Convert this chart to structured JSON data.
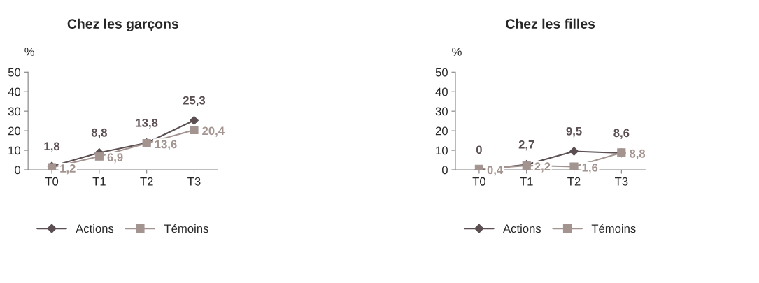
{
  "chart_data": [
    {
      "type": "line",
      "title": "Chez les garçons",
      "ylabel": "%",
      "categories": [
        "T0",
        "T1",
        "T2",
        "T3"
      ],
      "ylim": [
        0,
        50
      ],
      "yticks": [
        0,
        10,
        20,
        30,
        40,
        50
      ],
      "grid": false,
      "legend": "bottom",
      "series": [
        {
          "name": "Actions",
          "color": "#5b4f52",
          "marker": "diamond",
          "values": [
            1.8,
            8.8,
            13.8,
            25.3
          ],
          "value_labels": [
            "1,8",
            "8,8",
            "13,8",
            "25,3"
          ]
        },
        {
          "name": "Témoins",
          "color": "#a39490",
          "marker": "square",
          "values": [
            1.2,
            6.9,
            13.6,
            20.4
          ],
          "value_labels": [
            "1,2",
            "6,9",
            "13,6",
            "20,4"
          ]
        }
      ]
    },
    {
      "type": "line",
      "title": "Chez les filles",
      "ylabel": "%",
      "categories": [
        "T0",
        "T1",
        "T2",
        "T3"
      ],
      "ylim": [
        0,
        50
      ],
      "yticks": [
        0,
        10,
        20,
        30,
        40,
        50
      ],
      "grid": false,
      "legend": "bottom",
      "series": [
        {
          "name": "Actions",
          "color": "#5b4f52",
          "marker": "diamond",
          "values": [
            0,
            2.7,
            9.5,
            8.6
          ],
          "value_labels": [
            "0",
            "2,7",
            "9,5",
            "8,6"
          ]
        },
        {
          "name": "Témoins",
          "color": "#a39490",
          "marker": "square",
          "values": [
            0.4,
            2.2,
            1.6,
            8.8
          ],
          "value_labels": [
            "0,4",
            "2,2",
            "1,6",
            "8,8"
          ]
        }
      ]
    }
  ]
}
